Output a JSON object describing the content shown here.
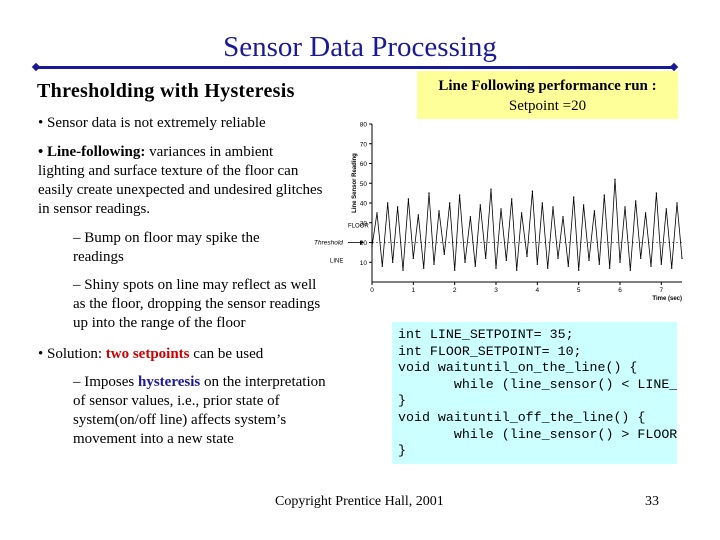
{
  "title": "Sensor Data Processing",
  "subtitle": "Thresholding with Hysteresis",
  "callout": {
    "line1": "Line Following performance run :",
    "line2": "Setpoint =20"
  },
  "bullets": {
    "b1": "• Sensor data is not extremely reliable",
    "b2_bold": "• Line-following:",
    "b2_rest": " variances in ambient lighting and surface texture of the floor can easily create unexpected and undesired glitches in sensor readings.",
    "sub1": "– Bump on floor may spike the readings",
    "sub2": "– Shiny spots on line may reflect as well as the floor, dropping the sensor readings up into the range of the floor",
    "b3_pre": "• Solution: ",
    "b3_red": "two setpoints",
    "b3_post": " can be used",
    "sub3_pre": "– Imposes ",
    "sub3_blue": "hysteresis",
    "sub3_post": " on the interpretation of sensor values, i.e., prior state of system(on/off line) affects system’s movement into a new state"
  },
  "code": [
    "int LINE_SETPOINT= 35;",
    "int FLOOR_SETPOINT= 10;",
    "void waituntil_on_the_line() {",
    "       while (line_sensor() < LINE_SETPOINT);",
    "}",
    "void waituntil_off_the_line() {",
    "       while (line_sensor() > FLOOR_SETPOINT);",
    "}"
  ],
  "footer": "Copyright Prentice Hall, 2001",
  "page_number": "33",
  "colors": {
    "title": "#1a1a99",
    "callout_bg": "#ffff99",
    "code_bg": "#ccffff",
    "highlight_red": "#cc0000"
  },
  "chart_data": {
    "type": "line",
    "xlabel": "Time (sec)",
    "ylabel": "Line Sensor Reading",
    "xlim": [
      0,
      7.5
    ],
    "ylim": [
      0,
      80
    ],
    "xticks": [
      "0",
      "1",
      "2",
      "3",
      "4",
      "5",
      "6",
      "7"
    ],
    "yticks": [
      "10",
      "20",
      "30",
      "40",
      "50",
      "60",
      "70",
      "80"
    ],
    "annotations": {
      "floor": "FLOOR",
      "threshold": "Threshold",
      "line": "LINE"
    },
    "threshold": 20,
    "series": [
      {
        "x": [
          0,
          0.12,
          0.25,
          0.38,
          0.5,
          0.62,
          0.75,
          0.88,
          1,
          1.12,
          1.25,
          1.38,
          1.5,
          1.62,
          1.75,
          1.88,
          2,
          2.12,
          2.25,
          2.38,
          2.5,
          2.62,
          2.75,
          2.88,
          3,
          3.12,
          3.25,
          3.38,
          3.5,
          3.62,
          3.75,
          3.88,
          4,
          4.12,
          4.25,
          4.38,
          4.5,
          4.62,
          4.75,
          4.88,
          5,
          5.12,
          5.25,
          5.38,
          5.5,
          5.62,
          5.75,
          5.88,
          6,
          6.12,
          6.25,
          6.38,
          6.5,
          6.62,
          6.75,
          6.88,
          7,
          7.12,
          7.25,
          7.38,
          7.5
        ],
        "y": [
          18,
          35,
          8,
          40,
          10,
          38,
          6,
          42,
          12,
          34,
          7,
          45,
          9,
          36,
          14,
          40,
          6,
          44,
          10,
          33,
          8,
          39,
          12,
          47,
          7,
          37,
          11,
          42,
          6,
          35,
          13,
          46,
          9,
          40,
          7,
          38,
          12,
          33,
          8,
          43,
          6,
          39,
          11,
          36,
          9,
          44,
          7,
          52,
          10,
          38,
          6,
          41,
          12,
          35,
          8,
          45,
          9,
          37,
          7,
          40,
          12
        ]
      }
    ]
  }
}
